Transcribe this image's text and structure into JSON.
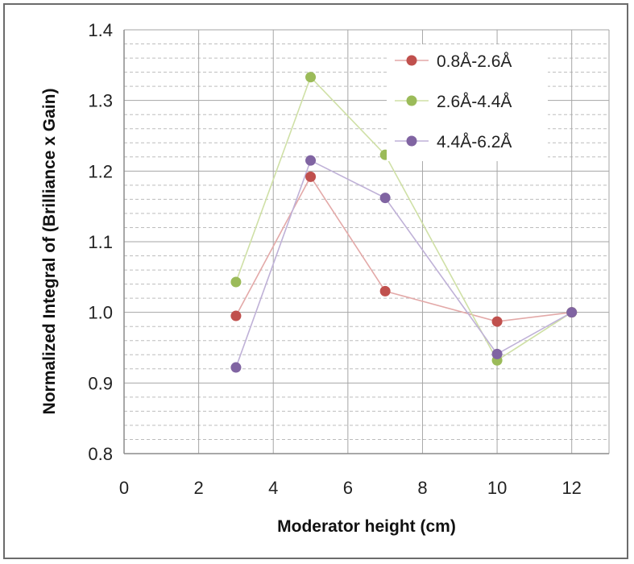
{
  "chart_data": {
    "type": "line",
    "title": "",
    "xlabel": "Moderator height (cm)",
    "ylabel": "Normalized Integral of (Brilliance x Gain)",
    "xlim": [
      0,
      13
    ],
    "ylim": [
      0.8,
      1.4
    ],
    "x_ticks": [
      "0",
      "2",
      "4",
      "6",
      "8",
      "10",
      "12"
    ],
    "y_ticks": [
      "0.8",
      "0.9",
      "1.0",
      "1.1",
      "1.2",
      "1.3",
      "1.4"
    ],
    "grid": true,
    "legend_position": "top-right",
    "x": [
      3,
      5,
      7,
      10,
      12
    ],
    "series": [
      {
        "name": "0.8Å-2.6Å",
        "color": "#c0504d",
        "line_color": "#e3a9a8",
        "values": [
          0.995,
          1.192,
          1.03,
          0.987,
          1.0
        ]
      },
      {
        "name": "2.6Å-4.4Å",
        "color": "#9bbb59",
        "line_color": "#cfe0a6",
        "values": [
          1.043,
          1.333,
          1.223,
          0.932,
          1.0
        ]
      },
      {
        "name": "4.4Å-6.2Å",
        "color": "#8064a2",
        "line_color": "#bfb1d7",
        "values": [
          0.922,
          1.215,
          1.162,
          0.941,
          1.0
        ]
      }
    ]
  }
}
